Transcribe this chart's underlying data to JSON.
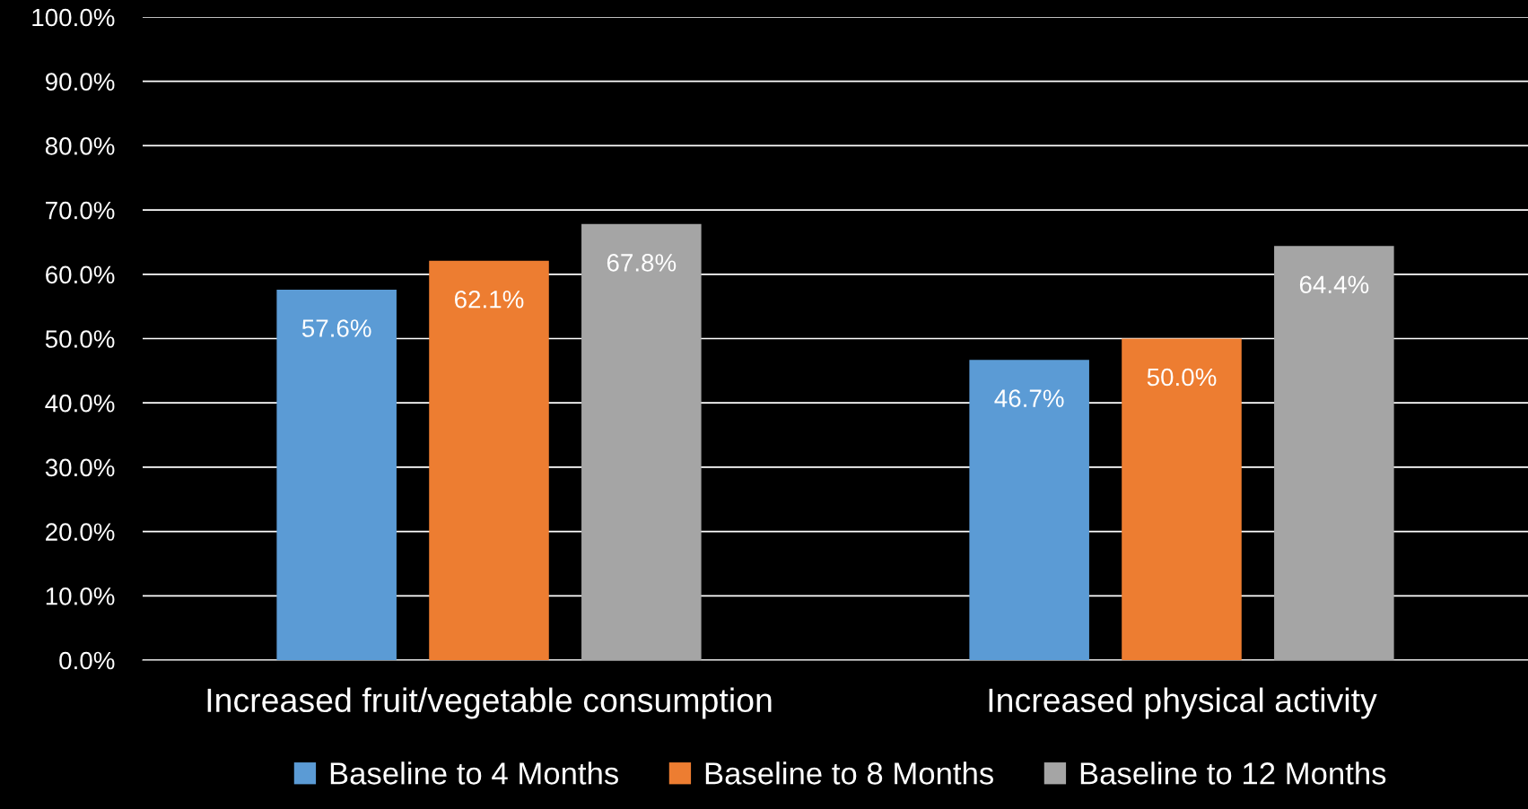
{
  "chart_data": {
    "type": "bar",
    "categories": [
      "Increased fruit/vegetable consumption",
      "Increased physical activity"
    ],
    "series": [
      {
        "name": "Baseline to 4 Months",
        "color": "#5b9bd5",
        "values": [
          57.6,
          46.7
        ],
        "value_labels": [
          "57.6%",
          "46.7%"
        ]
      },
      {
        "name": "Baseline to 8 Months",
        "color": "#ed7d31",
        "values": [
          62.1,
          50.0
        ],
        "value_labels": [
          "62.1%",
          "50.0%"
        ]
      },
      {
        "name": "Baseline to 12 Months",
        "color": "#a5a5a5",
        "values": [
          67.8,
          64.4
        ],
        "value_labels": [
          "67.8%",
          "64.4%"
        ]
      }
    ],
    "ylim": [
      0,
      100
    ],
    "yticks": [
      {
        "value": 0,
        "label": "0.0%"
      },
      {
        "value": 10,
        "label": "10.0%"
      },
      {
        "value": 20,
        "label": "20.0%"
      },
      {
        "value": 30,
        "label": "30.0%"
      },
      {
        "value": 40,
        "label": "40.0%"
      },
      {
        "value": 50,
        "label": "50.0%"
      },
      {
        "value": 60,
        "label": "60.0%"
      },
      {
        "value": 70,
        "label": "70.0%"
      },
      {
        "value": 80,
        "label": "80.0%"
      },
      {
        "value": 90,
        "label": "90.0%"
      },
      {
        "value": 100,
        "label": "100.0%"
      }
    ],
    "grid": "y",
    "legend": "bottom"
  }
}
